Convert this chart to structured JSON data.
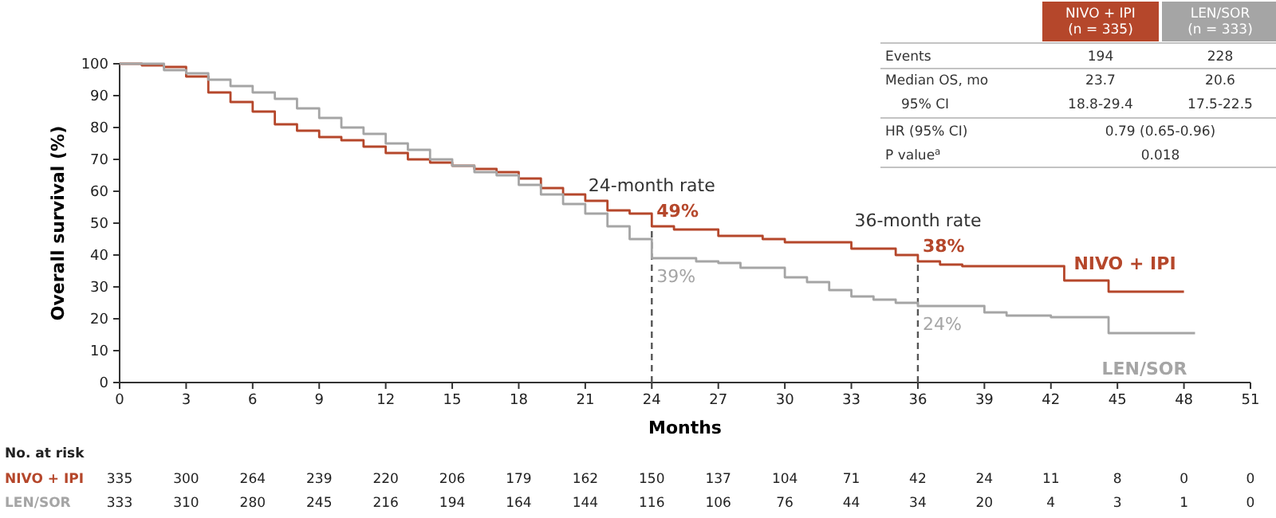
{
  "chart_data": {
    "type": "step",
    "xlabel": "Months",
    "ylabel": "Overall survival (%)",
    "xlim": [
      0,
      51
    ],
    "xticks": [
      0,
      3,
      6,
      9,
      12,
      15,
      18,
      21,
      24,
      27,
      30,
      33,
      36,
      39,
      42,
      45,
      48,
      51
    ],
    "ylim": [
      0,
      100
    ],
    "yticks": [
      0,
      10,
      20,
      30,
      40,
      50,
      60,
      70,
      80,
      90,
      100
    ],
    "grid": false,
    "series": [
      {
        "name": "NIVO + IPI",
        "color": "#b5472b",
        "x": [
          0,
          1,
          2,
          3,
          4,
          5,
          6,
          7,
          8,
          9,
          10,
          11,
          12,
          13,
          14,
          15,
          16,
          17,
          18,
          19,
          20,
          21,
          22,
          23,
          24,
          25,
          27,
          29,
          30,
          33,
          35,
          36,
          37,
          38,
          42.6,
          44.6,
          48
        ],
        "values": [
          100,
          99.5,
          99,
          96,
          91,
          88,
          85,
          81,
          79,
          77,
          76,
          74,
          72,
          70,
          69,
          68,
          67,
          66,
          64,
          61,
          59,
          57,
          54,
          53,
          49,
          48,
          46,
          45,
          44,
          42,
          40,
          38,
          37,
          36.5,
          32,
          28.5,
          28.5
        ],
        "value_labels": [
          null,
          null,
          null,
          null,
          null,
          null,
          null,
          null,
          null,
          null,
          null,
          null,
          null,
          null,
          null,
          null,
          null,
          null,
          null,
          null,
          null,
          null,
          null,
          null,
          "49%",
          null,
          null,
          null,
          null,
          null,
          null,
          "38%",
          null,
          null,
          null,
          null,
          null
        ]
      },
      {
        "name": "LEN/SOR",
        "color": "#a5a5a5",
        "x": [
          0,
          2,
          3,
          4,
          5,
          6,
          7,
          8,
          9,
          10,
          11,
          12,
          13,
          14,
          15,
          16,
          17,
          18,
          19,
          20,
          21,
          22,
          23,
          24,
          25,
          26,
          27,
          28,
          30,
          31,
          32,
          33,
          34,
          35,
          36,
          38,
          39,
          40,
          42,
          44.6,
          48.5
        ],
        "values": [
          100,
          98,
          97,
          95,
          93,
          91,
          89,
          86,
          83,
          80,
          78,
          75,
          73,
          70,
          68,
          66,
          65,
          62,
          59,
          56,
          53,
          49,
          45,
          39,
          39,
          38,
          37.5,
          36,
          33,
          31.5,
          29,
          27,
          26,
          25,
          24,
          24,
          22,
          21,
          20.5,
          15.5,
          15.5
        ],
        "value_labels": [
          null,
          null,
          null,
          null,
          null,
          null,
          null,
          null,
          null,
          null,
          null,
          null,
          null,
          null,
          null,
          null,
          null,
          null,
          null,
          null,
          null,
          null,
          null,
          "39%",
          null,
          null,
          null,
          null,
          null,
          null,
          null,
          null,
          null,
          null,
          "24%",
          null,
          null,
          null,
          null,
          null,
          null
        ]
      }
    ],
    "ref_lines": [
      {
        "axis": "x",
        "value": 24,
        "label": "24-month rate",
        "line_style": "dashed",
        "color": "#555555"
      },
      {
        "axis": "x",
        "value": 36,
        "label": "36-month rate",
        "line_style": "dashed",
        "color": "#555555"
      }
    ],
    "annotations": [
      "NIVO + IPI (n = 335)",
      "LEN/SOR (n = 333)",
      "Events",
      "194",
      "228",
      "Median OS, mo",
      "23.7",
      "20.6",
      "95% CI",
      "18.8-29.4",
      "17.5-22.5",
      "HR (95% CI)",
      "0.79 (0.65-0.96)",
      "P value$^{a}$",
      "0.018",
      "No. at risk",
      "335 300 264 239 220 206 179 162 150 137 104 71 42 24 11 8 0 0",
      "333 310 280 245 216 194 164 144 116 106 76 44 34 20 4 3 1 0"
    ]
  }
}
